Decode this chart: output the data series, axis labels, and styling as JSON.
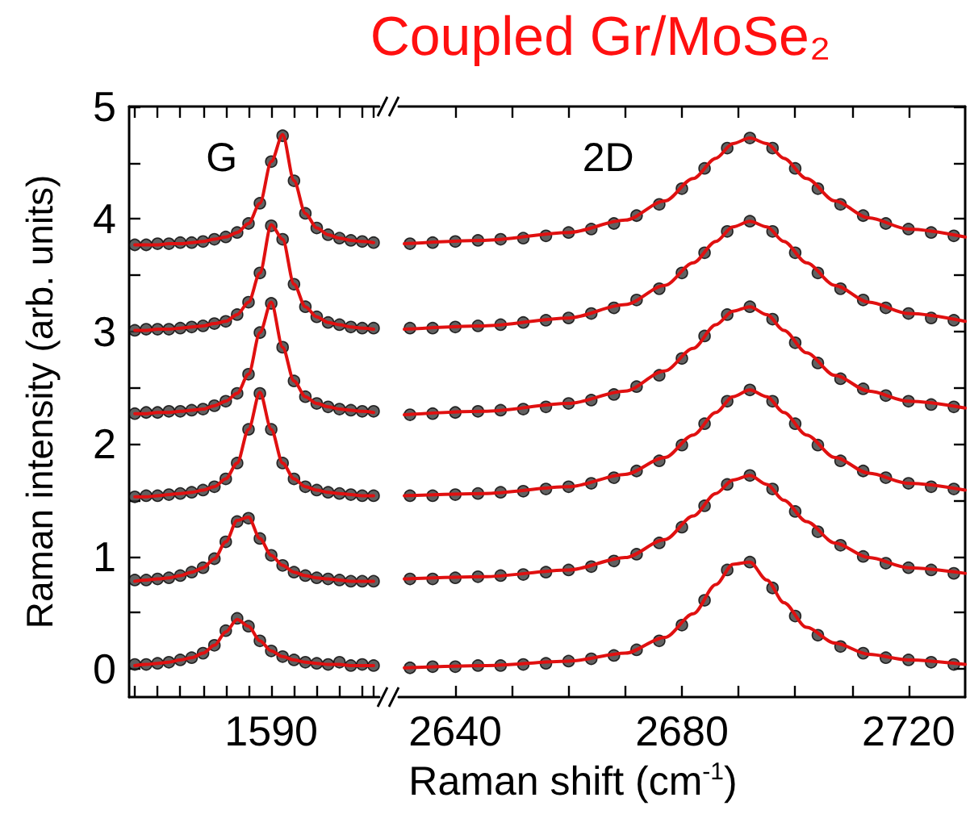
{
  "chart_data": [
    {
      "type": "scatter",
      "ylabel": "Raman intensity (arb. units)",
      "annotations": [
        "G"
      ],
      "categories": [
        null,
        null,
        null,
        null,
        null,
        null,
        null,
        null,
        null,
        null,
        null,
        null,
        "1590",
        null,
        null,
        null,
        null,
        null,
        null,
        null,
        null,
        null
      ],
      "ylim": [
        -0.25,
        5
      ],
      "yticks": [
        0,
        {
          "value": 0.5,
          "label": null
        },
        1,
        {
          "value": 1.5,
          "label": null
        },
        2,
        {
          "value": 2.5,
          "label": null
        },
        3,
        {
          "value": 3.5,
          "label": null
        },
        4,
        {
          "value": 4.5,
          "label": null
        },
        5
      ],
      "series": [
        {
          "color": "#3a3a3a",
          "marker": "circle",
          "values": [
            0.04,
            0.04,
            0.05,
            0.06,
            0.08,
            0.1,
            0.14,
            0.21,
            0.34,
            0.45,
            0.38,
            0.25,
            0.16,
            0.11,
            0.08,
            0.06,
            0.05,
            0.04,
            0.06,
            0.03,
            0.04,
            0.03
          ]
        },
        {
          "color": "#3a3a3a",
          "marker": "circle",
          "values": [
            0.79,
            0.79,
            0.8,
            0.81,
            0.83,
            0.86,
            0.9,
            0.98,
            1.13,
            1.31,
            1.34,
            1.16,
            1.01,
            0.92,
            0.86,
            0.83,
            0.81,
            0.8,
            0.79,
            0.78,
            0.78,
            0.78
          ]
        },
        {
          "color": "#3a3a3a",
          "marker": "circle",
          "values": [
            1.53,
            1.54,
            1.54,
            1.55,
            1.56,
            1.57,
            1.59,
            1.62,
            1.69,
            1.83,
            2.13,
            2.45,
            2.13,
            1.83,
            1.69,
            1.62,
            1.59,
            1.57,
            1.56,
            1.55,
            1.54,
            1.54
          ]
        },
        {
          "color": "#3a3a3a",
          "marker": "circle",
          "values": [
            2.27,
            2.28,
            2.28,
            2.29,
            2.29,
            2.3,
            2.31,
            2.34,
            2.38,
            2.45,
            2.62,
            2.99,
            3.25,
            2.86,
            2.56,
            2.42,
            2.36,
            2.33,
            2.31,
            2.3,
            2.29,
            2.29
          ]
        },
        {
          "color": "#3a3a3a",
          "marker": "circle",
          "values": [
            3.01,
            3.02,
            3.02,
            3.02,
            3.03,
            3.04,
            3.05,
            3.07,
            3.09,
            3.15,
            3.26,
            3.52,
            3.94,
            3.82,
            3.42,
            3.22,
            3.13,
            3.08,
            3.06,
            3.04,
            3.03,
            3.03
          ]
        },
        {
          "color": "#3a3a3a",
          "marker": "circle",
          "values": [
            3.77,
            3.77,
            3.78,
            3.78,
            3.79,
            3.79,
            3.8,
            3.82,
            3.84,
            3.88,
            3.96,
            4.14,
            4.51,
            4.74,
            4.34,
            4.05,
            3.92,
            3.86,
            3.83,
            3.81,
            3.8,
            3.79
          ]
        },
        {
          "type": "line",
          "color": "#e01010",
          "marker": "none",
          "values": [
            0.03,
            0.04,
            0.05,
            0.06,
            0.08,
            0.1,
            0.14,
            0.21,
            0.33,
            0.44,
            0.38,
            0.25,
            0.16,
            0.11,
            0.08,
            0.06,
            0.05,
            0.04,
            0.04,
            0.03,
            0.03,
            0.03
          ]
        },
        {
          "type": "line",
          "color": "#e01010",
          "marker": "none",
          "values": [
            0.78,
            0.79,
            0.8,
            0.81,
            0.83,
            0.86,
            0.9,
            0.98,
            1.13,
            1.32,
            1.35,
            1.16,
            1.01,
            0.92,
            0.86,
            0.83,
            0.81,
            0.8,
            0.79,
            0.78,
            0.78,
            0.78
          ]
        },
        {
          "type": "line",
          "color": "#e01010",
          "marker": "none",
          "values": [
            1.53,
            1.53,
            1.54,
            1.55,
            1.56,
            1.57,
            1.59,
            1.62,
            1.69,
            1.83,
            2.13,
            2.46,
            2.13,
            1.83,
            1.69,
            1.62,
            1.59,
            1.57,
            1.56,
            1.55,
            1.54,
            1.54
          ]
        },
        {
          "type": "line",
          "color": "#e01010",
          "marker": "none",
          "values": [
            2.27,
            2.27,
            2.28,
            2.28,
            2.29,
            2.3,
            2.31,
            2.34,
            2.38,
            2.45,
            2.62,
            2.99,
            3.26,
            2.86,
            2.56,
            2.42,
            2.36,
            2.33,
            2.31,
            2.3,
            2.29,
            2.28
          ]
        },
        {
          "type": "line",
          "color": "#e01010",
          "marker": "none",
          "values": [
            3.01,
            3.01,
            3.02,
            3.02,
            3.03,
            3.04,
            3.05,
            3.07,
            3.09,
            3.15,
            3.26,
            3.52,
            3.95,
            3.82,
            3.42,
            3.22,
            3.13,
            3.08,
            3.06,
            3.04,
            3.03,
            3.02
          ]
        },
        {
          "type": "line",
          "color": "#e01010",
          "marker": "none",
          "values": [
            3.77,
            3.77,
            3.77,
            3.78,
            3.78,
            3.79,
            3.8,
            3.82,
            3.84,
            3.88,
            3.96,
            4.14,
            4.51,
            4.75,
            4.34,
            4.05,
            3.92,
            3.86,
            3.83,
            3.81,
            3.8,
            3.79
          ]
        }
      ]
    },
    {
      "type": "scatter",
      "title": "Coupled Gr/MoSe₂",
      "xlabel": "Raman shift (cm$^{-1}$)",
      "tick_labels": "x",
      "annotations": [
        "2D"
      ],
      "xlim": [
        2630,
        2730
      ],
      "xticks": [
        2640,
        {
          "value": 2650,
          "label": null
        },
        {
          "value": 2660,
          "label": null
        },
        {
          "value": 2670,
          "label": null
        },
        2680,
        {
          "value": 2690,
          "label": null
        },
        {
          "value": 2700,
          "label": null
        },
        {
          "value": 2710,
          "label": null
        },
        2720
      ],
      "ylim": [
        -0.25,
        5
      ],
      "yticks": [
        0,
        {
          "value": 0.5,
          "label": null
        },
        1,
        {
          "value": 1.5,
          "label": null
        },
        2,
        {
          "value": 2.5,
          "label": null
        },
        3,
        {
          "value": 3.5,
          "label": null
        },
        4,
        {
          "value": 4.5,
          "label": null
        },
        5
      ],
      "x": [
        2632,
        2636,
        2640,
        2644,
        2648,
        2652,
        2656,
        2660,
        2664,
        2668,
        2672,
        2676,
        2680,
        2684,
        2688,
        2692,
        2696,
        2700,
        2704,
        2708,
        2712,
        2716,
        2720,
        2724,
        2728
      ],
      "series": [
        {
          "color": "#3a3a3a",
          "marker": "circle",
          "values": [
            0.01,
            0.02,
            0.02,
            0.03,
            0.03,
            0.04,
            0.05,
            0.07,
            0.09,
            0.12,
            0.17,
            0.25,
            0.39,
            0.61,
            0.88,
            0.95,
            0.72,
            0.47,
            0.3,
            0.2,
            0.14,
            0.1,
            0.08,
            0.06,
            0.04
          ]
        },
        {
          "color": "#3a3a3a",
          "marker": "circle",
          "values": [
            0.8,
            0.8,
            0.81,
            0.82,
            0.83,
            0.84,
            0.86,
            0.88,
            0.91,
            0.96,
            1.02,
            1.12,
            1.26,
            1.45,
            1.64,
            1.72,
            1.6,
            1.4,
            1.22,
            1.1,
            1.0,
            0.94,
            0.9,
            0.88,
            0.85
          ]
        },
        {
          "color": "#3a3a3a",
          "marker": "circle",
          "values": [
            1.54,
            1.54,
            1.55,
            1.56,
            1.57,
            1.58,
            1.6,
            1.62,
            1.65,
            1.7,
            1.76,
            1.85,
            1.99,
            2.18,
            2.38,
            2.48,
            2.38,
            2.18,
            1.99,
            1.85,
            1.76,
            1.7,
            1.65,
            1.62,
            1.6
          ]
        },
        {
          "color": "#3a3a3a",
          "marker": "circle",
          "values": [
            2.26,
            2.27,
            2.28,
            2.29,
            2.3,
            2.31,
            2.33,
            2.36,
            2.39,
            2.44,
            2.51,
            2.61,
            2.76,
            2.96,
            3.15,
            3.22,
            3.11,
            2.9,
            2.72,
            2.58,
            2.49,
            2.43,
            2.38,
            2.35,
            2.33
          ]
        },
        {
          "color": "#3a3a3a",
          "marker": "circle",
          "values": [
            3.03,
            3.03,
            3.04,
            3.05,
            3.06,
            3.08,
            3.1,
            3.12,
            3.16,
            3.21,
            3.28,
            3.38,
            3.52,
            3.7,
            3.89,
            3.98,
            3.89,
            3.7,
            3.52,
            3.38,
            3.28,
            3.21,
            3.16,
            3.12,
            3.1
          ]
        },
        {
          "color": "#3a3a3a",
          "marker": "circle",
          "values": [
            3.78,
            3.79,
            3.8,
            3.81,
            3.82,
            3.83,
            3.85,
            3.88,
            3.91,
            3.96,
            4.03,
            4.13,
            4.27,
            4.45,
            4.63,
            4.72,
            4.63,
            4.45,
            4.27,
            4.13,
            4.03,
            3.96,
            3.91,
            3.88,
            3.85
          ]
        },
        {
          "type": "line",
          "color": "#e01010",
          "marker": "none",
          "x": [
            2631,
            2645,
            2660,
            2670,
            2677,
            2682,
            2686,
            2689,
            2692,
            2695,
            2698,
            2702,
            2707,
            2713,
            2720,
            2730
          ],
          "values": [
            0.01,
            0.03,
            0.07,
            0.14,
            0.28,
            0.49,
            0.75,
            0.93,
            0.95,
            0.79,
            0.59,
            0.37,
            0.23,
            0.13,
            0.08,
            0.04
          ]
        },
        {
          "type": "line",
          "color": "#e01010",
          "marker": "none",
          "x": [
            2631,
            2645,
            2660,
            2670,
            2677,
            2682,
            2686,
            2689,
            2692,
            2695,
            2698,
            2702,
            2707,
            2713,
            2720,
            2730
          ],
          "values": [
            0.8,
            0.82,
            0.88,
            0.99,
            1.15,
            1.36,
            1.56,
            1.68,
            1.72,
            1.64,
            1.5,
            1.31,
            1.12,
            0.99,
            0.9,
            0.85
          ]
        },
        {
          "type": "line",
          "color": "#e01010",
          "marker": "none",
          "x": [
            2631,
            2645,
            2660,
            2670,
            2677,
            2682,
            2686,
            2689,
            2692,
            2695,
            2698,
            2702,
            2707,
            2713,
            2720,
            2730
          ],
          "values": [
            1.54,
            1.56,
            1.62,
            1.73,
            1.88,
            2.08,
            2.28,
            2.42,
            2.48,
            2.42,
            2.28,
            2.08,
            1.88,
            1.74,
            1.65,
            1.59
          ]
        },
        {
          "type": "line",
          "color": "#e01010",
          "marker": "none",
          "x": [
            2631,
            2645,
            2660,
            2670,
            2677,
            2682,
            2686,
            2689,
            2692,
            2695,
            2698,
            2702,
            2707,
            2713,
            2720,
            2730
          ],
          "values": [
            2.26,
            2.29,
            2.36,
            2.47,
            2.65,
            2.85,
            3.06,
            3.18,
            3.22,
            3.15,
            3.01,
            2.81,
            2.61,
            2.47,
            2.38,
            2.32
          ]
        },
        {
          "type": "line",
          "color": "#e01010",
          "marker": "none",
          "x": [
            2631,
            2645,
            2660,
            2670,
            2677,
            2682,
            2686,
            2689,
            2692,
            2695,
            2698,
            2702,
            2707,
            2713,
            2720,
            2730
          ],
          "values": [
            3.02,
            3.05,
            3.12,
            3.24,
            3.41,
            3.61,
            3.8,
            3.93,
            3.98,
            3.93,
            3.8,
            3.61,
            3.41,
            3.26,
            3.16,
            3.09
          ]
        },
        {
          "type": "line",
          "color": "#e01010",
          "marker": "none",
          "x": [
            2631,
            2645,
            2660,
            2670,
            2677,
            2682,
            2686,
            2689,
            2692,
            2695,
            2698,
            2702,
            2707,
            2713,
            2720,
            2730
          ],
          "values": [
            3.78,
            3.81,
            3.88,
            3.99,
            4.16,
            4.36,
            4.54,
            4.67,
            4.72,
            4.67,
            4.54,
            4.36,
            4.16,
            4.01,
            3.91,
            3.84
          ]
        }
      ]
    }
  ]
}
